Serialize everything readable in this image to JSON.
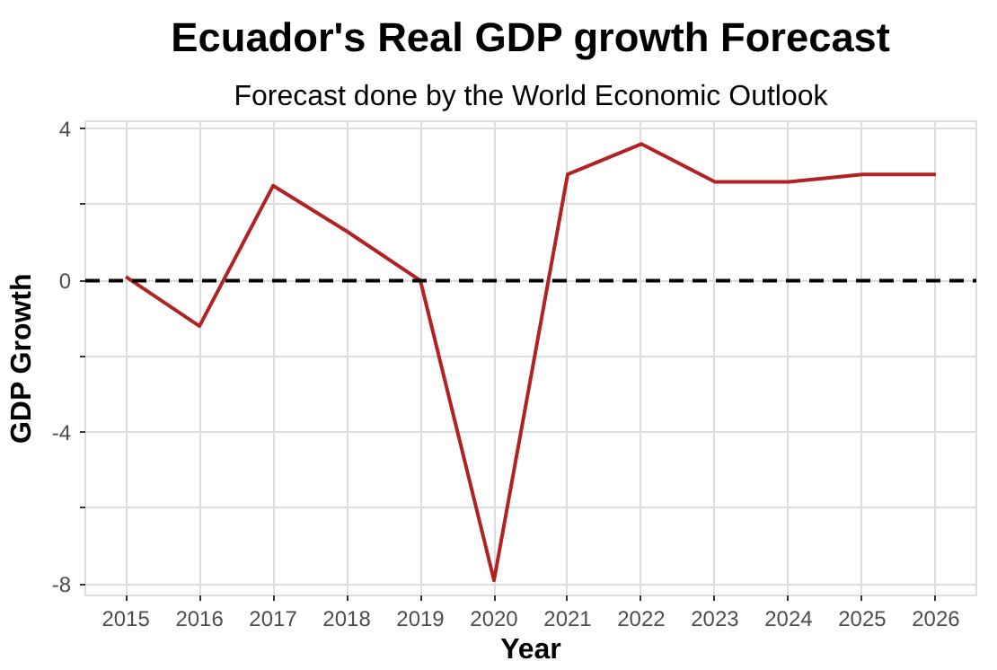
{
  "chart_data": {
    "type": "line",
    "title": "Ecuador's Real GDP growth Forecast",
    "subtitle": "Forecast done by the World Economic Outlook",
    "xlabel": "Year",
    "ylabel": "GDP Growth",
    "x": [
      2015,
      2016,
      2017,
      2018,
      2019,
      2020,
      2021,
      2022,
      2023,
      2024,
      2025,
      2026
    ],
    "series": [
      {
        "color": "#b22222",
        "values": [
          0.1,
          -1.2,
          2.5,
          1.3,
          0.0,
          -7.9,
          2.8,
          3.6,
          2.6,
          2.6,
          2.8,
          2.8
        ]
      }
    ],
    "xlim": [
      2014.45,
      2026.55
    ],
    "xticks": [
      2015,
      2016,
      2017,
      2018,
      2019,
      2020,
      2021,
      2022,
      2023,
      2024,
      2025,
      2026
    ],
    "ylim": [
      -8.3,
      4.2
    ],
    "yticks": [
      -8,
      {
        "value": -6,
        "label": null
      },
      -4,
      {
        "value": -2,
        "label": null
      },
      0,
      {
        "value": 2,
        "label": null
      },
      4
    ],
    "ref_lines": [
      {
        "axis": "y",
        "value": 0,
        "color": "#000000",
        "line_style": "dashed"
      }
    ],
    "grid": true,
    "marker": "none",
    "line_style": "solid"
  }
}
